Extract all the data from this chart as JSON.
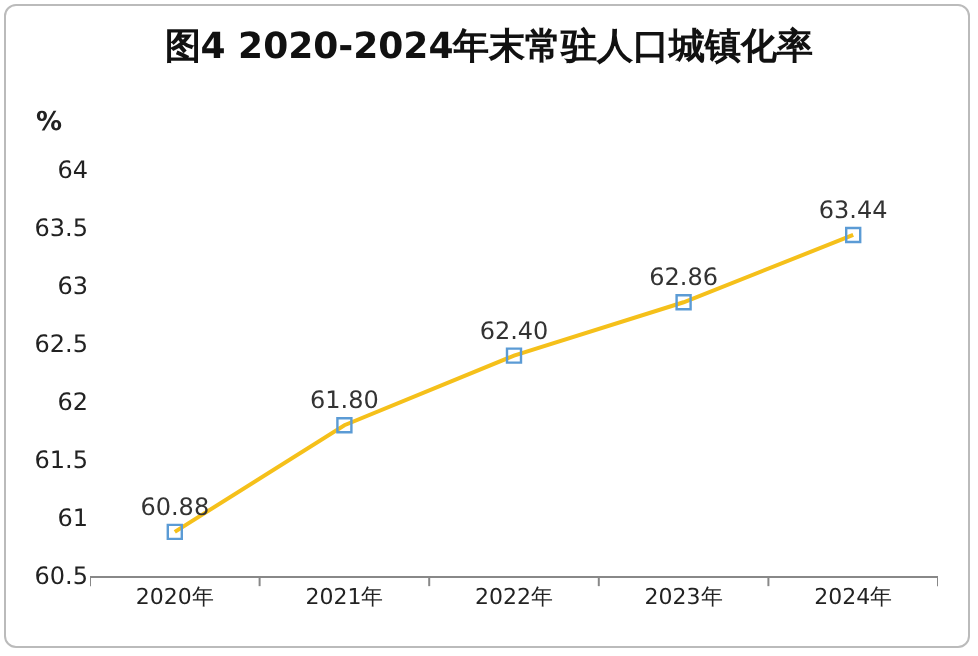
{
  "chart_data": {
    "type": "line",
    "title": "图4 2020-2024年末常驻人口城镇化率",
    "ylabel": "%",
    "categories": [
      "2020年",
      "2021年",
      "2022年",
      "2023年",
      "2024年"
    ],
    "series": [
      {
        "color": "#f5c01a",
        "values": [
          60.88,
          61.8,
          62.4,
          62.86,
          63.44
        ],
        "value_labels": [
          "60.88",
          "61.80",
          "62.40",
          "62.86",
          "63.44"
        ]
      }
    ],
    "ylim": [
      60.5,
      64
    ],
    "yticks": [
      60.5,
      61,
      61.5,
      62,
      62.5,
      63,
      63.5,
      64
    ],
    "marker": "square"
  }
}
